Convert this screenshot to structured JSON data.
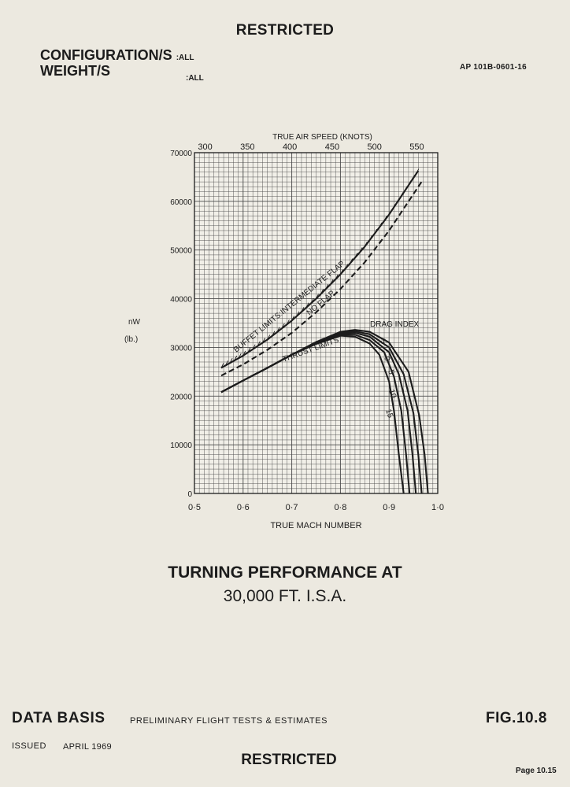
{
  "header": {
    "classification": "RESTRICTED",
    "configuration_label": "CONFIGURATION/S",
    "configuration_value": ":ALL",
    "weight_label": "WEIGHT/S",
    "weight_value": ":ALL",
    "doc_ref": "AP 101B-0601-16"
  },
  "chart_data": {
    "type": "line",
    "title": "",
    "xlabel": "TRUE MACH NUMBER",
    "x2label": "TRUE AIR SPEED (KNOTS)",
    "ylabel": "nW",
    "ylabel_unit": "(lb.)",
    "xlim": [
      0.5,
      1.0
    ],
    "ylim": [
      0,
      70000
    ],
    "x_ticks": [
      "0·5",
      "0·6",
      "0·7",
      "0·8",
      "0·9",
      "1·0"
    ],
    "y_ticks": [
      "0",
      "10000",
      "20000",
      "30000",
      "40000",
      "50000",
      "60000",
      "70000"
    ],
    "x2_ticks": [
      {
        "mach": 0.522,
        "label": "300"
      },
      {
        "mach": 0.609,
        "label": "350"
      },
      {
        "mach": 0.696,
        "label": "400"
      },
      {
        "mach": 0.783,
        "label": "450"
      },
      {
        "mach": 0.87,
        "label": "500"
      },
      {
        "mach": 0.957,
        "label": "550"
      }
    ],
    "grid": true,
    "annotations": {
      "buffet": "BUFFET LIMITS:INTERMEDIATE FLAP",
      "no_flap": "NO FLAP",
      "thrust": "THRUST LIMITS",
      "drag_index": "DRAG  INDEX",
      "drag_labels": [
        "-5",
        "0",
        "5",
        "10",
        "15"
      ]
    },
    "series": [
      {
        "name": "BUFFET LIMITS:INTERMEDIATE FLAP",
        "style": "solid",
        "x": [
          0.555,
          0.6,
          0.65,
          0.7,
          0.75,
          0.8,
          0.85,
          0.9,
          0.94,
          0.96
        ],
        "y": [
          25800,
          28300,
          31600,
          35500,
          40000,
          45000,
          50700,
          57300,
          63300,
          66300
        ]
      },
      {
        "name": "NO FLAP",
        "style": "dashed",
        "x": [
          0.555,
          0.6,
          0.65,
          0.7,
          0.75,
          0.8,
          0.85,
          0.9,
          0.94,
          0.97
        ],
        "y": [
          24200,
          26500,
          29500,
          33000,
          37200,
          42000,
          47500,
          54000,
          60000,
          64500
        ]
      },
      {
        "name": "-5",
        "x": [
          0.555,
          0.6,
          0.65,
          0.7,
          0.75,
          0.8,
          0.83,
          0.86,
          0.88,
          0.9,
          0.91,
          0.92,
          0.93
        ],
        "y": [
          20800,
          23200,
          25800,
          28500,
          30700,
          32400,
          32200,
          30800,
          28500,
          23000,
          17000,
          8000,
          0
        ]
      },
      {
        "name": "0",
        "x": [
          0.555,
          0.6,
          0.65,
          0.7,
          0.75,
          0.8,
          0.83,
          0.86,
          0.89,
          0.91,
          0.925,
          0.935,
          0.942
        ],
        "y": [
          20800,
          23200,
          25800,
          28500,
          30800,
          32600,
          32600,
          31500,
          29000,
          24000,
          17000,
          8000,
          0
        ]
      },
      {
        "name": "5",
        "x": [
          0.555,
          0.6,
          0.65,
          0.7,
          0.75,
          0.8,
          0.83,
          0.86,
          0.9,
          0.92,
          0.938,
          0.948,
          0.955
        ],
        "y": [
          20800,
          23200,
          25800,
          28500,
          30900,
          32800,
          33000,
          32200,
          29000,
          24500,
          17000,
          8000,
          0
        ]
      },
      {
        "name": "10",
        "x": [
          0.555,
          0.6,
          0.65,
          0.7,
          0.75,
          0.8,
          0.83,
          0.86,
          0.9,
          0.93,
          0.95,
          0.96,
          0.967
        ],
        "y": [
          20800,
          23200,
          25800,
          28500,
          31000,
          33000,
          33300,
          32700,
          30000,
          24500,
          16500,
          8000,
          0
        ]
      },
      {
        "name": "15",
        "x": [
          0.555,
          0.6,
          0.65,
          0.7,
          0.75,
          0.8,
          0.83,
          0.86,
          0.9,
          0.94,
          0.962,
          0.973,
          0.98
        ],
        "y": [
          20800,
          23200,
          25800,
          28500,
          31100,
          33200,
          33600,
          33200,
          31000,
          25000,
          16000,
          8000,
          0
        ]
      }
    ]
  },
  "figure": {
    "title_line1": "TURNING PERFORMANCE AT",
    "title_line2": "30,000 FT. I.S.A."
  },
  "footer": {
    "basis_label": "DATA BASIS",
    "basis_value": "PRELIMINARY FLIGHT TESTS & ESTIMATES",
    "fig": "FIG.10.8",
    "issued_label": "ISSUED",
    "issued_value": "APRIL 1969",
    "classification": "RESTRICTED",
    "page": "Page 10.15"
  }
}
